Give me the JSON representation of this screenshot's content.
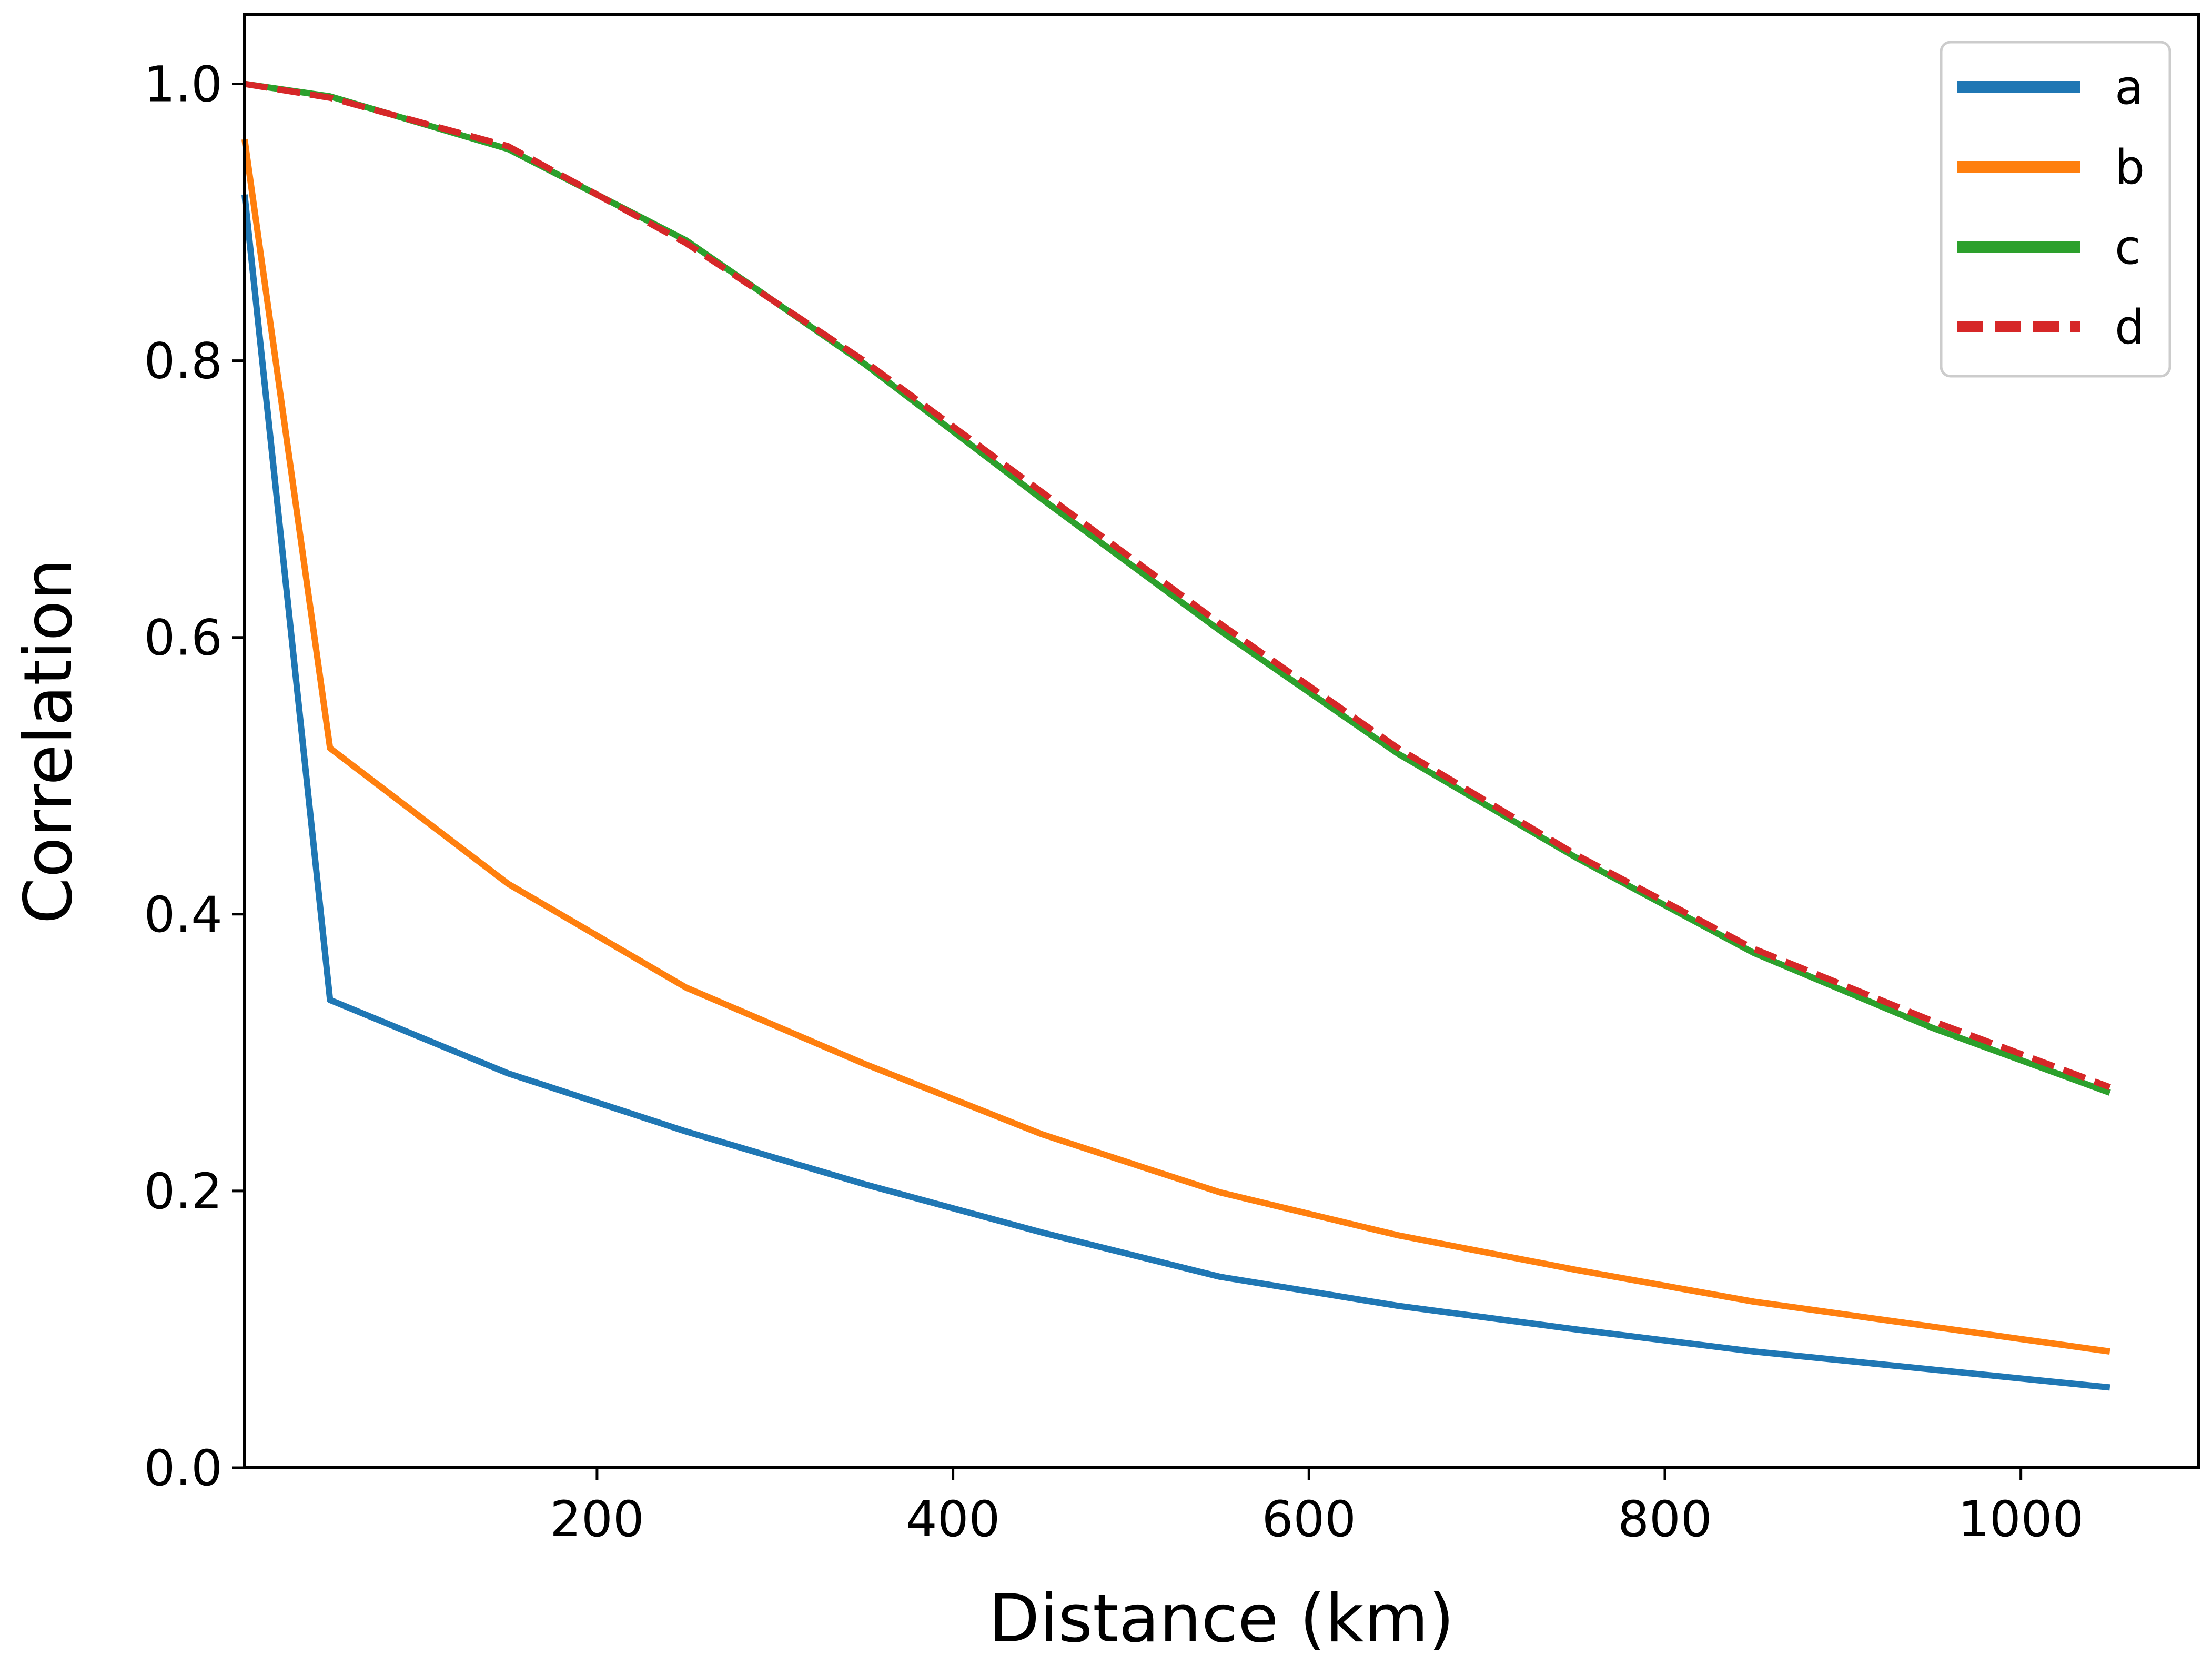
{
  "chart_data": {
    "type": "line",
    "title": "",
    "xlabel": "Distance (km)",
    "ylabel": "Correlation",
    "xlim": [
      2,
      1100
    ],
    "ylim": [
      0,
      1.05
    ],
    "xticks": [
      200,
      400,
      600,
      800,
      1000
    ],
    "yticks": [
      0.0,
      0.2,
      0.4,
      0.6,
      0.8,
      1.0
    ],
    "xtick_labels": [
      "200",
      "400",
      "600",
      "800",
      "1000"
    ],
    "ytick_labels": [
      "0.0",
      "0.2",
      "0.4",
      "0.6",
      "0.8",
      "1.0"
    ],
    "grid": false,
    "legend_position": "top-right",
    "x": [
      2,
      50,
      150,
      250,
      350,
      450,
      550,
      650,
      750,
      850,
      950,
      1050
    ],
    "series": [
      {
        "name": "a",
        "color": "#1f77b4",
        "dash": "solid",
        "values": [
          0.92,
          0.338,
          0.285,
          0.243,
          0.205,
          0.17,
          0.138,
          0.117,
          0.1,
          0.084,
          0.071,
          0.058
        ]
      },
      {
        "name": "b",
        "color": "#ff7f0e",
        "dash": "solid",
        "values": [
          0.96,
          0.52,
          0.422,
          0.347,
          0.292,
          0.241,
          0.199,
          0.168,
          0.143,
          0.12,
          0.102,
          0.084
        ]
      },
      {
        "name": "c",
        "color": "#2ca02c",
        "dash": "solid",
        "values": [
          1.0,
          0.991,
          0.953,
          0.887,
          0.798,
          0.7,
          0.605,
          0.516,
          0.441,
          0.372,
          0.318,
          0.271
        ]
      },
      {
        "name": "d",
        "color": "#d62728",
        "dash": "dashed",
        "values": [
          1.0,
          0.99,
          0.955,
          0.885,
          0.8,
          0.705,
          0.61,
          0.52,
          0.443,
          0.375,
          0.323,
          0.275
        ]
      }
    ]
  }
}
